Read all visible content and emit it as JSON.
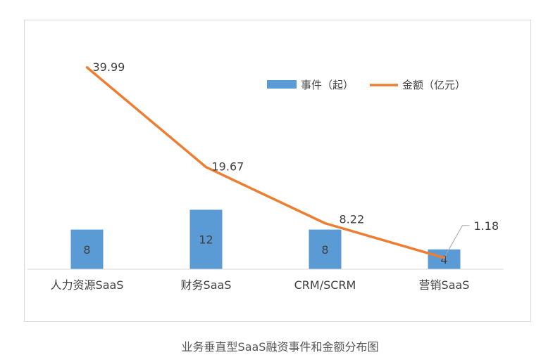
{
  "caption": "业务垂直型SaaS融资事件和金额分布图",
  "chart_data": {
    "type": "bar",
    "categories": [
      "人力资源SaaS",
      "财务SaaS",
      "CRM/SCRM",
      "营销SaaS"
    ],
    "series": [
      {
        "name": "事件（起）",
        "type": "bar",
        "values": [
          8,
          12,
          8,
          4
        ],
        "color": "#5b9bd5"
      },
      {
        "name": "金额（亿元）",
        "type": "line",
        "values": [
          39.99,
          19.67,
          8.22,
          1.18
        ],
        "color": "#ed7d31"
      }
    ],
    "bar_data_labels": [
      "8",
      "12",
      "8",
      "4"
    ],
    "line_data_labels": [
      "39.99",
      "19.67",
      "8.22",
      "1.18"
    ],
    "title": "",
    "xlabel": "",
    "ylabel": "",
    "legend_position": "top-right",
    "grid": false,
    "axis_color": "#d9d9d9",
    "label_color": "#404040"
  }
}
